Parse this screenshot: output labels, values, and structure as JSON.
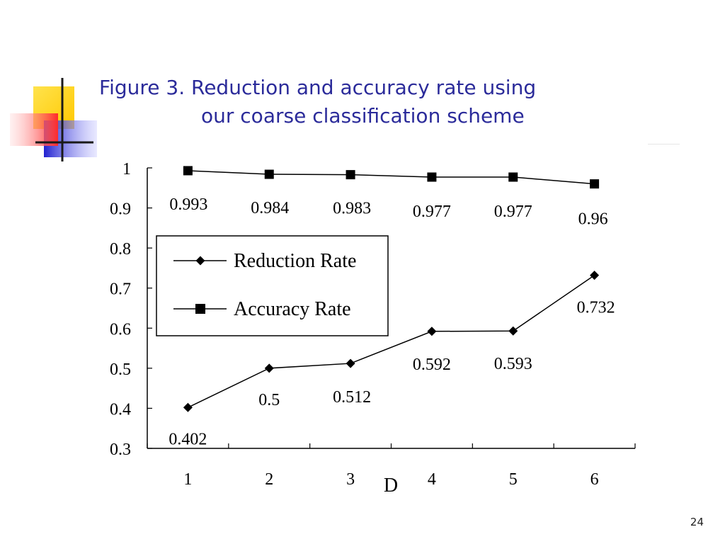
{
  "slide": {
    "title_line1": "Figure 3. Reduction and accuracy rate using",
    "title_line2": "our coarse classification scheme",
    "page_number": "24"
  },
  "colors": {
    "title": "#2b2b9a",
    "logo_yellow": "#ffd400",
    "logo_red": "#ff3b3b",
    "logo_blue": "#2f2fd6",
    "chart_ink": "#000000"
  },
  "chart_data": {
    "type": "line",
    "title": "",
    "xlabel": "D",
    "ylabel": "",
    "categories": [
      "1",
      "2",
      "3",
      "4",
      "5",
      "6"
    ],
    "yticks": [
      "0.3",
      "0.4",
      "0.5",
      "0.6",
      "0.7",
      "0.8",
      "0.9",
      "1"
    ],
    "ylim": [
      0.3,
      1.0
    ],
    "grid": false,
    "legend_position": "upper-left",
    "series": [
      {
        "name": "Reduction Rate",
        "marker": "diamond",
        "values": [
          0.402,
          0.5,
          0.512,
          0.592,
          0.593,
          0.732
        ],
        "labels": [
          "0.402",
          "0.5",
          "0.512",
          "0.592",
          "0.593",
          "0.732"
        ]
      },
      {
        "name": "Accuracy Rate",
        "marker": "square",
        "values": [
          0.993,
          0.984,
          0.983,
          0.977,
          0.977,
          0.96
        ],
        "labels": [
          "0.993",
          "0.984",
          "0.983",
          "0.977",
          "0.977",
          "0.96"
        ]
      }
    ]
  }
}
